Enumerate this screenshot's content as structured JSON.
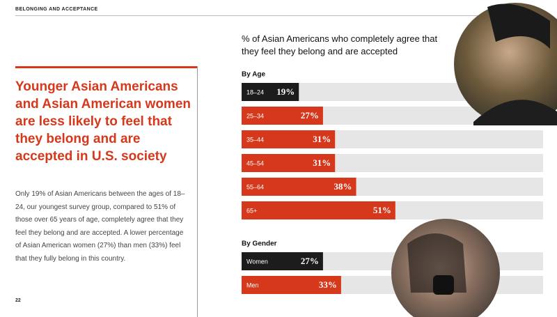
{
  "header": "BELONGING AND ACCEPTANCE",
  "headline": "Younger Asian Americans and Asian American women are less likely to feel that they belong and are accepted in U.S. society",
  "body": "Only 19% of Asian Americans between the ages of 18–24, our youngest survey group, compared to 51% of those over 65 years of age, completely agree that they feel they belong and are accepted. A lower percentage of Asian American women (27%) than men (33%) feel that they fully belong in this country.",
  "page_number": "22",
  "chart_data": [
    {
      "type": "bar",
      "orientation": "horizontal",
      "title": "% of Asian Americans who completely agree that they feel they belong and are accepted",
      "subtitle": "By Age",
      "categories": [
        "18–24",
        "25–34",
        "35–44",
        "45–54",
        "55–64",
        "65+"
      ],
      "values": [
        19,
        27,
        31,
        31,
        38,
        51
      ],
      "value_labels": [
        "19%",
        "27%",
        "31%",
        "31%",
        "38%",
        "51%"
      ],
      "colors": [
        "#1c1c1c",
        "#d6381c",
        "#d6381c",
        "#d6381c",
        "#d6381c",
        "#d6381c"
      ],
      "xlim": [
        0,
        100
      ]
    },
    {
      "type": "bar",
      "orientation": "horizontal",
      "subtitle": "By Gender",
      "categories": [
        "Women",
        "Men"
      ],
      "values": [
        27,
        33
      ],
      "value_labels": [
        "27%",
        "33%"
      ],
      "colors": [
        "#1c1c1c",
        "#d6381c"
      ],
      "xlim": [
        0,
        100
      ]
    }
  ]
}
